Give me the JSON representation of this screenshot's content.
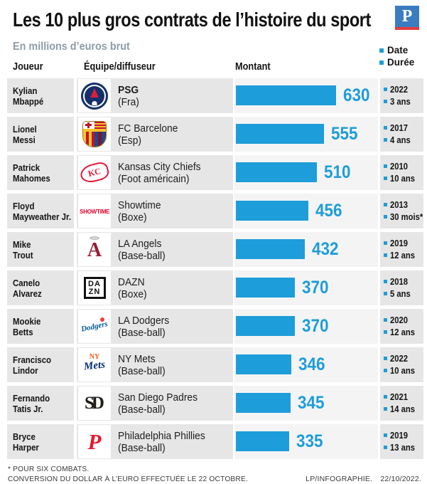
{
  "header": {
    "title": "Les 10 plus gros contrats de l’histoire du sport",
    "subtitle": "En millions d’euros brut",
    "brand_letter": "P",
    "legend": {
      "date": "Date",
      "duration": "Durée"
    },
    "columns": {
      "player": "Joueur",
      "team": "Équipe/diffuseur",
      "amount": "Montant"
    }
  },
  "chart_data": {
    "type": "bar",
    "orientation": "horizontal",
    "title": "Les 10 plus gros contrats de l’histoire du sport",
    "unit_label": "En millions d’euros brut",
    "value_axis_label": "Montant",
    "xlim": [
      0,
      700
    ],
    "grid": false,
    "legend_position": "top-right",
    "categories": [
      "Kylian Mbappé",
      "Lionel Messi",
      "Patrick Mahomes",
      "Floyd Mayweather Jr.",
      "Mike Trout",
      "Canelo Alvarez",
      "Mookie Betts",
      "Francisco Lindor",
      "Fernando Tatis Jr.",
      "Bryce Harper"
    ],
    "values": [
      630,
      555,
      510,
      456,
      432,
      370,
      370,
      346,
      345,
      335
    ],
    "rows": [
      {
        "player_line1": "Kylian",
        "player_line2": "Mbappé",
        "team": "PSG",
        "league": "(Fra)",
        "team_bold": true,
        "value": 630,
        "date": "2022",
        "duration": "3 ans",
        "logo": "psg"
      },
      {
        "player_line1": "Lionel",
        "player_line2": "Messi",
        "team": "FC Barcelone",
        "league": "(Esp)",
        "team_bold": false,
        "value": 555,
        "date": "2017",
        "duration": "4 ans",
        "logo": "barcelona"
      },
      {
        "player_line1": "Patrick",
        "player_line2": "Mahomes",
        "team": "Kansas City Chiefs",
        "league": "(Foot américain)",
        "team_bold": false,
        "value": 510,
        "date": "2010",
        "duration": "10 ans",
        "logo": "chiefs"
      },
      {
        "player_line1": "Floyd",
        "player_line2": "Mayweather Jr.",
        "team": "Showtime",
        "league": "(Boxe)",
        "team_bold": false,
        "value": 456,
        "date": "2013",
        "duration": "30 mois*",
        "logo": "showtime"
      },
      {
        "player_line1": "Mike",
        "player_line2": "Trout",
        "team": "LA Angels",
        "league": "(Base-ball)",
        "team_bold": false,
        "value": 432,
        "date": "2019",
        "duration": "12 ans",
        "logo": "angels"
      },
      {
        "player_line1": "Canelo",
        "player_line2": "Alvarez",
        "team": "DAZN",
        "league": "(Boxe)",
        "team_bold": false,
        "value": 370,
        "date": "2018",
        "duration": "5 ans",
        "logo": "dazn"
      },
      {
        "player_line1": "Mookie",
        "player_line2": "Betts",
        "team": "LA Dodgers",
        "league": "(Base-ball)",
        "team_bold": false,
        "value": 370,
        "date": "2020",
        "duration": "12 ans",
        "logo": "dodgers"
      },
      {
        "player_line1": "Francisco",
        "player_line2": "Lindor",
        "team": "NY Mets",
        "league": "(Base-ball)",
        "team_bold": false,
        "value": 346,
        "date": "2022",
        "duration": "10 ans",
        "logo": "mets"
      },
      {
        "player_line1": "Fernando",
        "player_line2": "Tatis Jr.",
        "team": "San Diego Padres",
        "league": "(Base-ball)",
        "team_bold": false,
        "value": 345,
        "date": "2021",
        "duration": "14 ans",
        "logo": "padres"
      },
      {
        "player_line1": "Bryce",
        "player_line2": "Harper",
        "team": "Philadelphia Phillies",
        "league": "(Base-ball)",
        "team_bold": false,
        "value": 335,
        "date": "2019",
        "duration": "13 ans",
        "logo": "phillies"
      }
    ]
  },
  "colors": {
    "accent_blue": "#1d9dd9",
    "subtitle_gray": "#8c9da8",
    "row_bg": "#e6e6e6",
    "bar_panel": "#f4f4f4",
    "brand_blue": "#3b7cc0",
    "brand_red": "#e23c40"
  },
  "footer": {
    "note_asterisk": "* POUR SIX COMBATS.",
    "note_conversion": "CONVERSION DU DOLLAR À L’EURO EFFECTUÉE LE 22 OCTOBRE.",
    "credit": "LP/INFOGRAPHIE.",
    "credit_date": "22/10/2022."
  }
}
